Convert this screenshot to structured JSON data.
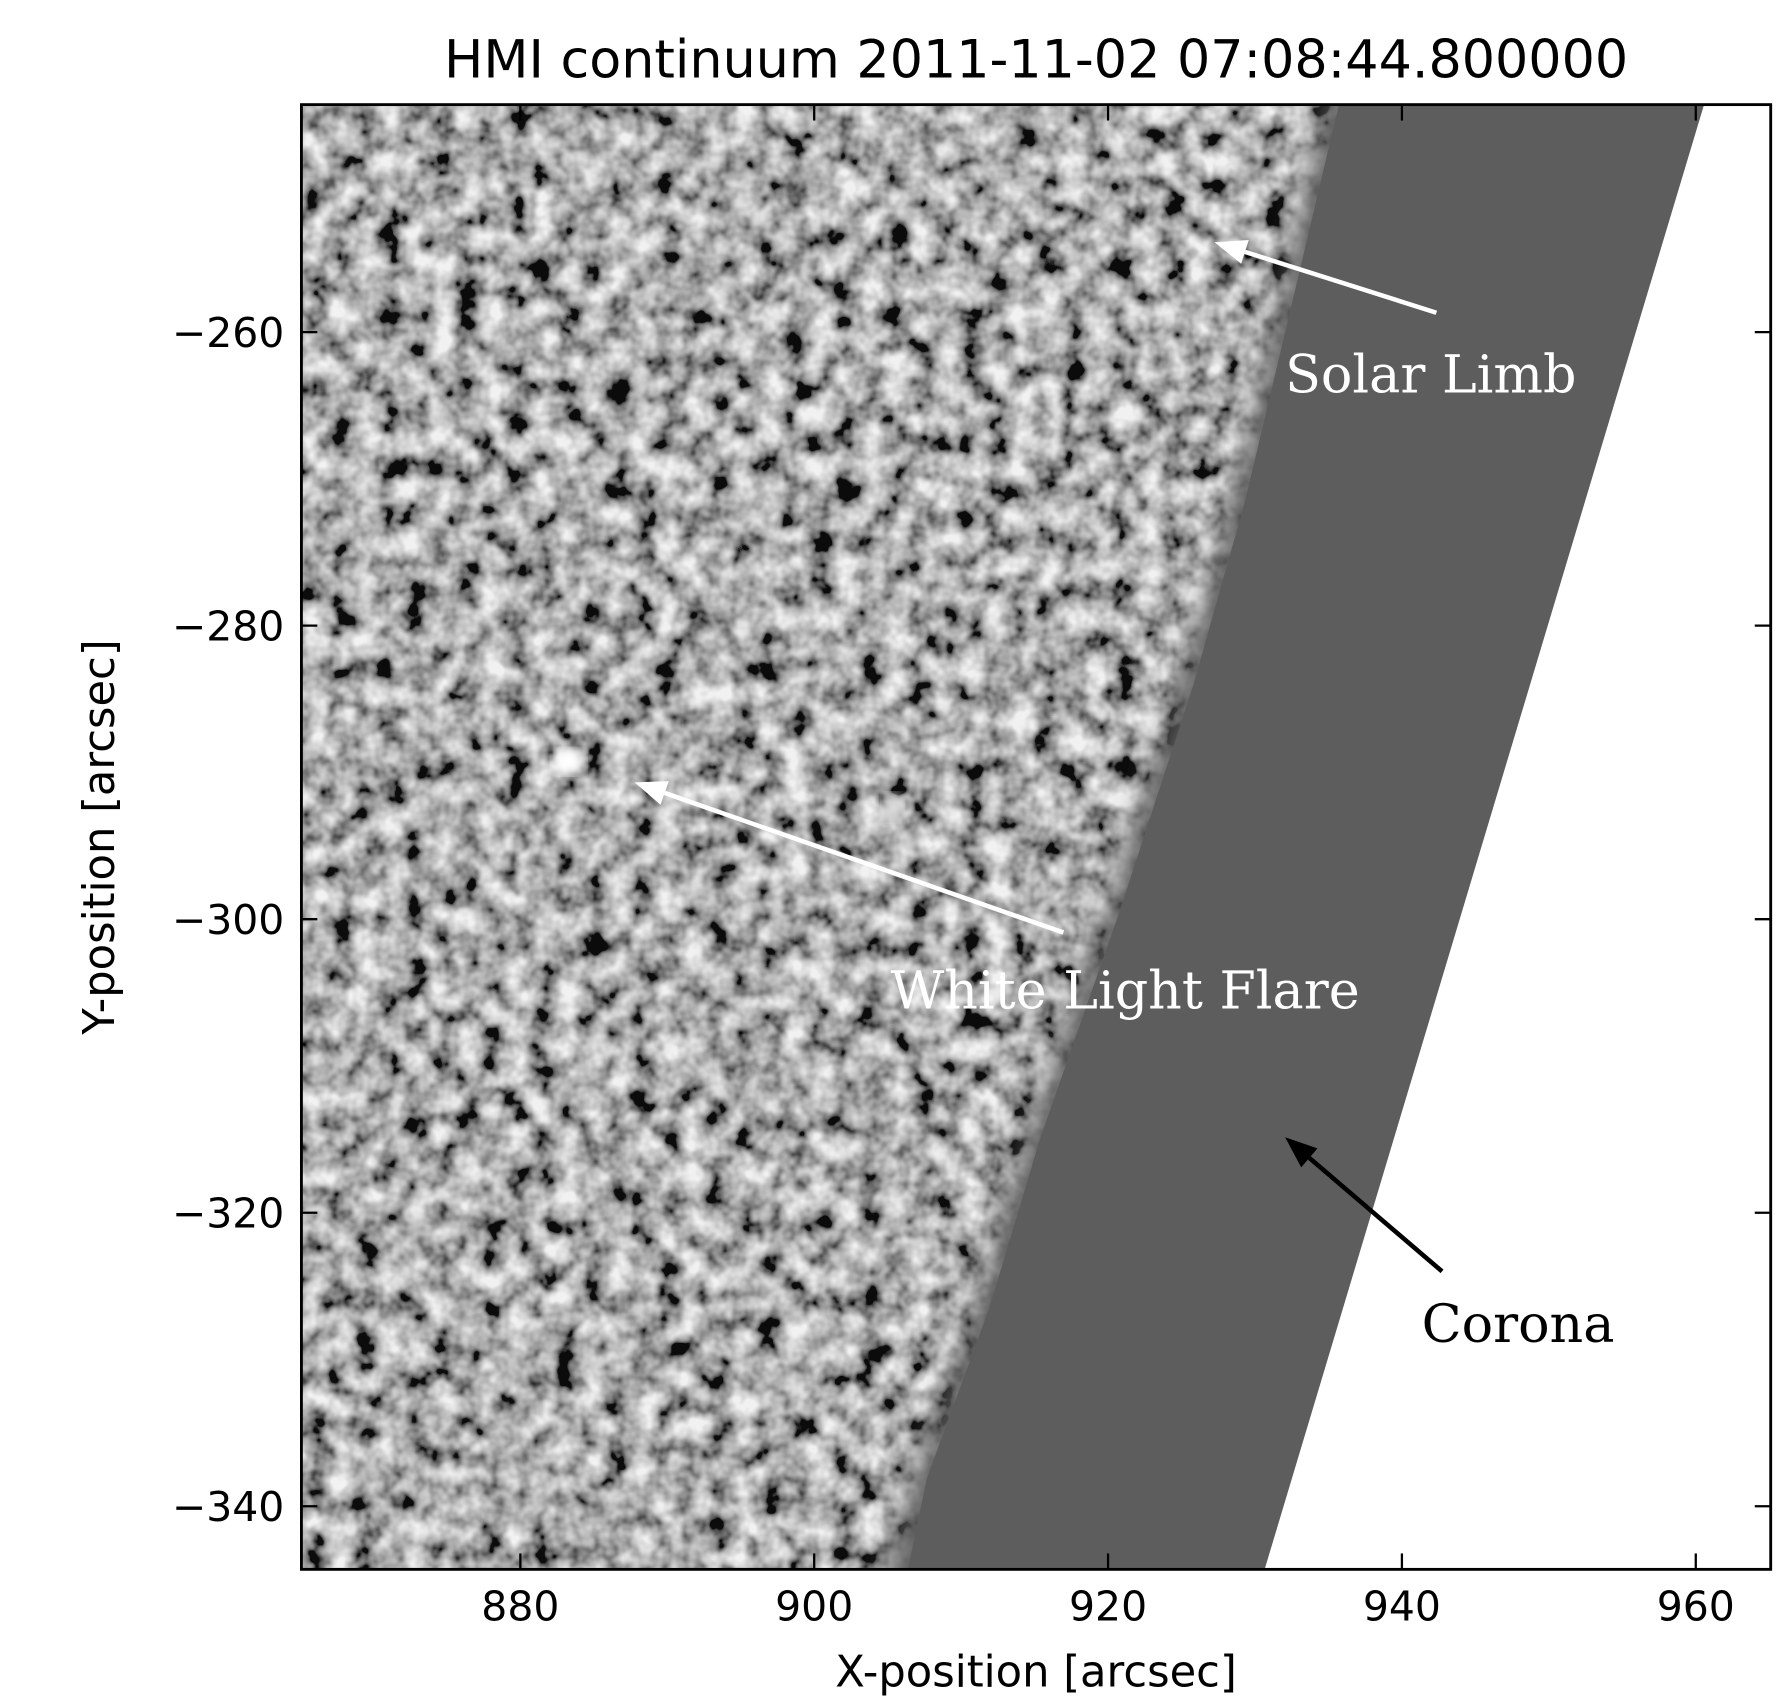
{
  "chart_data": {
    "type": "image",
    "title": "HMI continuum 2011-11-02 07:08:44.800000",
    "xlabel": "X-position [arcsec]",
    "ylabel": "Y-position [arcsec]",
    "xlim": [
      865.1,
      965.1
    ],
    "ylim": [
      -344.3,
      -244.5
    ],
    "xticks": [
      880,
      900,
      920,
      940,
      960
    ],
    "yticks": [
      {
        "value": -260,
        "label": "−260"
      },
      {
        "value": -280,
        "label": "−280"
      },
      {
        "value": -300,
        "label": "−300"
      },
      {
        "value": -320,
        "label": "−320"
      },
      {
        "value": -340,
        "label": "−340"
      }
    ],
    "annotations": [
      {
        "text": "Solar Limb"
      },
      {
        "text": "White Light Flare"
      },
      {
        "text": "Corona"
      }
    ]
  }
}
